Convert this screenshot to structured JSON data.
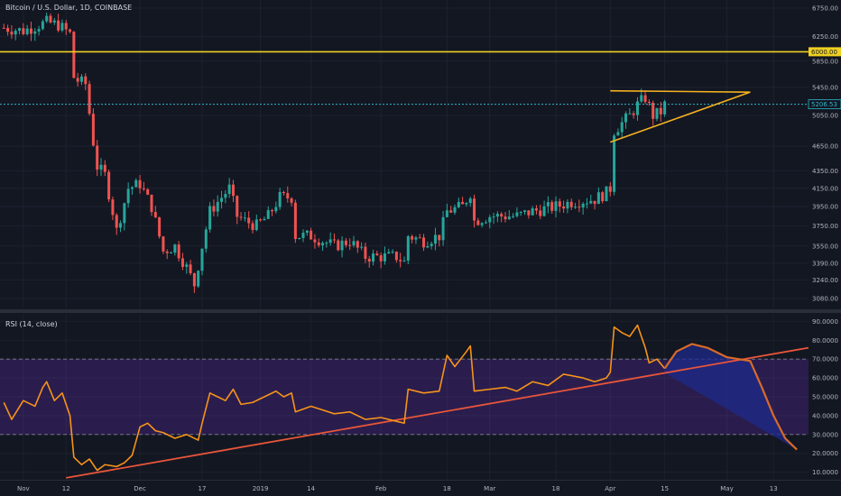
{
  "header": {
    "title": "Bitcoin / U.S. Dollar, 1D, COINBASE"
  },
  "rsi_header": {
    "title": "RSI (14, close)"
  },
  "colors": {
    "background": "#131722",
    "up": "#26a69a",
    "down": "#ef5350",
    "resistance": "#f0d020",
    "price_line": "#2fb5c8",
    "triangle": "#f5b221",
    "rsi_line": "#f7931a",
    "rsi_band": "#2a1d4d",
    "rsi_trend": "#e8553a",
    "projection_fill": "#1e2a8a",
    "projection_line": "#d86a2a",
    "label_bg": "#131722"
  },
  "chart_data": [
    {
      "type": "candlestick",
      "title": "Bitcoin / U.S. Dollar, 1D, COINBASE",
      "y_scale": "log",
      "ylim": [
        3000,
        6900
      ],
      "y_ticks": [
        3080,
        3240,
        3390,
        3550,
        3750,
        3950,
        4150,
        4350,
        4650,
        5050,
        5450,
        5850,
        6250,
        6750
      ],
      "y_tick_labels": [
        "3080.00",
        "3240.00",
        "3390.00",
        "3550.00",
        "3750.00",
        "3950.00",
        "4150.00",
        "4350.00",
        "4650.00",
        "5050.00",
        "5450.00",
        "5850.00",
        "6250.00",
        "6750.00"
      ],
      "x_ticks": [
        "2018-11-01",
        "2018-11-12",
        "2018-12-01",
        "2018-12-17",
        "2019-01-01",
        "2019-01-14",
        "2019-02-01",
        "2019-02-18",
        "2019-03-01",
        "2019-03-18",
        "2019-04-01",
        "2019-04-15",
        "2019-05-01",
        "2019-05-13"
      ],
      "x_tick_labels": [
        "Nov",
        "12",
        "Dec",
        "17",
        "2019",
        "14",
        "Feb",
        "18",
        "Mar",
        "18",
        "Apr",
        "15",
        "May",
        "13"
      ],
      "x_range": [
        "2018-10-26",
        "2019-05-22"
      ],
      "close_path": [
        [
          "2018-10-27",
          6400
        ],
        [
          "2018-11-01",
          6350
        ],
        [
          "2018-11-07",
          6500
        ],
        [
          "2018-11-10",
          6450
        ],
        [
          "2018-11-13",
          6300
        ],
        [
          "2018-11-14",
          5600
        ],
        [
          "2018-11-15",
          5550
        ],
        [
          "2018-11-17",
          5500
        ],
        [
          "2018-11-19",
          4700
        ],
        [
          "2018-11-20",
          4400
        ],
        [
          "2018-11-22",
          4300
        ],
        [
          "2018-11-24",
          3900
        ],
        [
          "2018-11-25",
          3700
        ],
        [
          "2018-11-28",
          4150
        ],
        [
          "2018-12-01",
          4200
        ],
        [
          "2018-12-04",
          3950
        ],
        [
          "2018-12-07",
          3500
        ],
        [
          "2018-12-10",
          3550
        ],
        [
          "2018-12-13",
          3350
        ],
        [
          "2018-12-15",
          3200
        ],
        [
          "2018-12-17",
          3550
        ],
        [
          "2018-12-19",
          3900
        ],
        [
          "2018-12-21",
          4000
        ],
        [
          "2018-12-24",
          4150
        ],
        [
          "2018-12-26",
          3850
        ],
        [
          "2018-12-28",
          3800
        ],
        [
          "2018-12-31",
          3750
        ],
        [
          "2019-01-03",
          3850
        ],
        [
          "2019-01-06",
          4050
        ],
        [
          "2019-01-09",
          4050
        ],
        [
          "2019-01-10",
          3650
        ],
        [
          "2019-01-14",
          3650
        ],
        [
          "2019-01-17",
          3600
        ],
        [
          "2019-01-20",
          3550
        ],
        [
          "2019-01-24",
          3600
        ],
        [
          "2019-01-28",
          3450
        ],
        [
          "2019-02-01",
          3450
        ],
        [
          "2019-02-05",
          3450
        ],
        [
          "2019-02-07",
          3400
        ],
        [
          "2019-02-08",
          3650
        ],
        [
          "2019-02-12",
          3600
        ],
        [
          "2019-02-16",
          3650
        ],
        [
          "2019-02-18",
          3900
        ],
        [
          "2019-02-22",
          3950
        ],
        [
          "2019-02-24",
          4100
        ],
        [
          "2019-02-25",
          3800
        ],
        [
          "2019-03-01",
          3850
        ],
        [
          "2019-03-05",
          3850
        ],
        [
          "2019-03-08",
          3850
        ],
        [
          "2019-03-12",
          3900
        ],
        [
          "2019-03-18",
          3950
        ],
        [
          "2019-03-22",
          4000
        ],
        [
          "2019-03-28",
          4030
        ],
        [
          "2019-03-31",
          4100
        ],
        [
          "2019-04-01",
          4150
        ],
        [
          "2019-04-02",
          4850
        ],
        [
          "2019-04-04",
          4950
        ],
        [
          "2019-04-06",
          5050
        ],
        [
          "2019-04-08",
          5200
        ],
        [
          "2019-04-10",
          5300
        ],
        [
          "2019-04-12",
          5050
        ],
        [
          "2019-04-14",
          5100
        ],
        [
          "2019-04-15",
          5200
        ]
      ],
      "lines": [
        {
          "name": "",
          "type": "horizontal",
          "value": 6000,
          "label": "6000.00"
        },
        {
          "name": "",
          "type": "horizontal",
          "value": 5206.53,
          "label": "5206.53"
        }
      ],
      "triangle": {
        "upper": [
          [
            "2019-04-01",
            5400
          ],
          [
            "2019-05-07",
            5380
          ]
        ],
        "lower": [
          [
            "2019-04-01",
            4700
          ],
          [
            "2019-05-07",
            5380
          ]
        ]
      }
    },
    {
      "type": "line",
      "title": "RSI (14, close)",
      "ylim": [
        6,
        94
      ],
      "y_ticks": [
        10,
        20,
        30,
        40,
        50,
        60,
        70,
        80,
        90
      ],
      "y_tick_labels": [
        "10.0000",
        "20.0000",
        "30.0000",
        "40.0000",
        "50.0000",
        "60.0000",
        "70.0000",
        "80.0000",
        "90.0000"
      ],
      "band": [
        30,
        70
      ],
      "series": [
        {
          "name": "",
          "values": [
            [
              "2018-10-27",
              47
            ],
            [
              "2018-10-29",
              38
            ],
            [
              "2018-11-01",
              48
            ],
            [
              "2018-11-04",
              45
            ],
            [
              "2018-11-06",
              55
            ],
            [
              "2018-11-07",
              58
            ],
            [
              "2018-11-09",
              48
            ],
            [
              "2018-11-11",
              52
            ],
            [
              "2018-11-13",
              40
            ],
            [
              "2018-11-14",
              18
            ],
            [
              "2018-11-16",
              14
            ],
            [
              "2018-11-18",
              17
            ],
            [
              "2018-11-20",
              11
            ],
            [
              "2018-11-22",
              14
            ],
            [
              "2018-11-25",
              13
            ],
            [
              "2018-11-27",
              15
            ],
            [
              "2018-11-29",
              19
            ],
            [
              "2018-12-01",
              34
            ],
            [
              "2018-12-03",
              36
            ],
            [
              "2018-12-05",
              32
            ],
            [
              "2018-12-07",
              31
            ],
            [
              "2018-12-10",
              28
            ],
            [
              "2018-12-13",
              30
            ],
            [
              "2018-12-16",
              27
            ],
            [
              "2018-12-17",
              36
            ],
            [
              "2018-12-19",
              52
            ],
            [
              "2018-12-21",
              50
            ],
            [
              "2018-12-23",
              48
            ],
            [
              "2018-12-25",
              54
            ],
            [
              "2018-12-27",
              46
            ],
            [
              "2018-12-30",
              47
            ],
            [
              "2019-01-02",
              50
            ],
            [
              "2019-01-05",
              53
            ],
            [
              "2019-01-07",
              50
            ],
            [
              "2019-01-09",
              52
            ],
            [
              "2019-01-10",
              42
            ],
            [
              "2019-01-14",
              45
            ],
            [
              "2019-01-17",
              43
            ],
            [
              "2019-01-20",
              41
            ],
            [
              "2019-01-24",
              42
            ],
            [
              "2019-01-28",
              38
            ],
            [
              "2019-02-01",
              39
            ],
            [
              "2019-02-05",
              37
            ],
            [
              "2019-02-07",
              36
            ],
            [
              "2019-02-08",
              54
            ],
            [
              "2019-02-12",
              52
            ],
            [
              "2019-02-16",
              53
            ],
            [
              "2019-02-18",
              72
            ],
            [
              "2019-02-20",
              66
            ],
            [
              "2019-02-23",
              74
            ],
            [
              "2019-02-24",
              77
            ],
            [
              "2019-02-25",
              53
            ],
            [
              "2019-03-01",
              54
            ],
            [
              "2019-03-05",
              55
            ],
            [
              "2019-03-08",
              53
            ],
            [
              "2019-03-12",
              58
            ],
            [
              "2019-03-16",
              56
            ],
            [
              "2019-03-20",
              62
            ],
            [
              "2019-03-25",
              60
            ],
            [
              "2019-03-28",
              58
            ],
            [
              "2019-03-31",
              60
            ],
            [
              "2019-04-01",
              63
            ],
            [
              "2019-04-02",
              87
            ],
            [
              "2019-04-04",
              84
            ],
            [
              "2019-04-06",
              82
            ],
            [
              "2019-04-08",
              88
            ],
            [
              "2019-04-10",
              76
            ],
            [
              "2019-04-11",
              68
            ],
            [
              "2019-04-13",
              70
            ],
            [
              "2019-04-15",
              65
            ]
          ]
        }
      ],
      "trendline": [
        [
          "2018-11-12",
          7
        ],
        [
          "2019-05-22",
          76
        ]
      ],
      "projection": [
        [
          "2019-04-15",
          65
        ],
        [
          "2019-04-18",
          74
        ],
        [
          "2019-04-22",
          78
        ],
        [
          "2019-04-26",
          76
        ],
        [
          "2019-05-01",
          71
        ],
        [
          "2019-05-04",
          70
        ],
        [
          "2019-05-07",
          69
        ],
        [
          "2019-05-10",
          55
        ],
        [
          "2019-05-13",
          40
        ],
        [
          "2019-05-16",
          28
        ],
        [
          "2019-05-19",
          22
        ]
      ]
    }
  ]
}
